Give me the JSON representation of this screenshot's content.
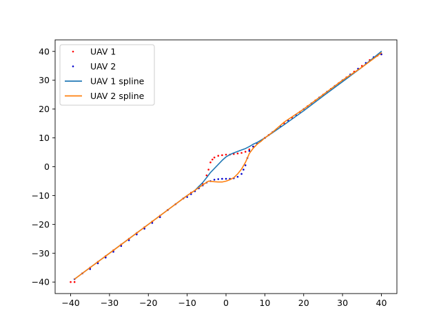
{
  "chart_data": {
    "type": "scatter",
    "title": "",
    "xlabel": "",
    "ylabel": "",
    "xlim": [
      -44.0,
      44.0
    ],
    "ylim": [
      -44.0,
      44.0
    ],
    "grid": false,
    "legend_placement": "upper-left",
    "xticks": [
      -40,
      -30,
      -20,
      -10,
      0,
      10,
      20,
      30,
      40
    ],
    "yticks": [
      -40,
      -30,
      -20,
      -10,
      0,
      10,
      20,
      30,
      40
    ],
    "xtick_labels": [
      "−40",
      "−30",
      "−20",
      "−10",
      "0",
      "10",
      "20",
      "30",
      "40"
    ],
    "ytick_labels": [
      "−40",
      "−30",
      "−20",
      "−10",
      "0",
      "10",
      "20",
      "30",
      "40"
    ],
    "series": [
      {
        "name": "UAV 1",
        "kind": "scatter",
        "color": "#ff0000",
        "points": [
          [
            -40,
            -40
          ],
          [
            -39,
            -40
          ],
          [
            -37,
            -37
          ],
          [
            -35,
            -35
          ],
          [
            -33,
            -33
          ],
          [
            -31,
            -31
          ],
          [
            -29,
            -29
          ],
          [
            -27,
            -27
          ],
          [
            -25,
            -25
          ],
          [
            -23,
            -23
          ],
          [
            -21,
            -21
          ],
          [
            -19,
            -19
          ],
          [
            -17,
            -17
          ],
          [
            -15,
            -15
          ],
          [
            -13,
            -13
          ],
          [
            -11,
            -11
          ],
          [
            -9,
            -9
          ],
          [
            -7,
            -7
          ],
          [
            -6,
            -6
          ],
          [
            -5,
            -3
          ],
          [
            -4.5,
            -1
          ],
          [
            -4,
            1.5
          ],
          [
            -3.5,
            2.5
          ],
          [
            -3,
            3.2
          ],
          [
            -2,
            3.8
          ],
          [
            -1,
            4
          ],
          [
            0,
            4.2
          ],
          [
            1,
            4.2
          ],
          [
            2,
            4.4
          ],
          [
            3,
            4.6
          ],
          [
            4,
            4.8
          ],
          [
            5,
            5.2
          ],
          [
            6,
            6
          ],
          [
            7,
            7
          ],
          [
            8,
            8
          ],
          [
            9,
            9
          ],
          [
            10,
            10
          ],
          [
            11,
            11
          ],
          [
            12,
            12
          ],
          [
            13,
            13
          ],
          [
            15,
            15
          ],
          [
            17,
            17
          ],
          [
            19,
            19
          ],
          [
            21,
            21
          ],
          [
            23,
            23
          ],
          [
            25,
            25
          ],
          [
            27,
            27
          ],
          [
            29,
            29
          ],
          [
            31,
            31
          ],
          [
            33,
            33
          ],
          [
            35,
            35
          ],
          [
            37,
            37
          ],
          [
            39,
            38.5
          ],
          [
            40,
            39
          ]
        ]
      },
      {
        "name": "UAV 2",
        "kind": "scatter",
        "color": "#0000cc",
        "points": [
          [
            -39,
            -39
          ],
          [
            -37,
            -37
          ],
          [
            -35,
            -35.5
          ],
          [
            -33,
            -33.5
          ],
          [
            -31,
            -31.5
          ],
          [
            -29,
            -29.5
          ],
          [
            -27,
            -27.5
          ],
          [
            -25,
            -25.5
          ],
          [
            -23,
            -23.5
          ],
          [
            -21,
            -21.5
          ],
          [
            -19,
            -19.5
          ],
          [
            -17,
            -17.5
          ],
          [
            -15,
            -15
          ],
          [
            -13,
            -13
          ],
          [
            -11,
            -11
          ],
          [
            -10,
            -10.5
          ],
          [
            -9,
            -9.5
          ],
          [
            -8,
            -8.5
          ],
          [
            -7,
            -7.5
          ],
          [
            -6,
            -6.5
          ],
          [
            -5,
            -5.5
          ],
          [
            -4,
            -5
          ],
          [
            -3,
            -4.5
          ],
          [
            -2,
            -4.3
          ],
          [
            -1,
            -4.2
          ],
          [
            0,
            -4.2
          ],
          [
            1,
            -4.2
          ],
          [
            2,
            -4
          ],
          [
            3,
            -3.5
          ],
          [
            4,
            -2.5
          ],
          [
            4.5,
            -1
          ],
          [
            5,
            0.5
          ],
          [
            5.5,
            3
          ],
          [
            6,
            5.5
          ],
          [
            7,
            7
          ],
          [
            8,
            8
          ],
          [
            9,
            9
          ],
          [
            10,
            10
          ],
          [
            11,
            11
          ],
          [
            12,
            12
          ],
          [
            14,
            14
          ],
          [
            16,
            16
          ],
          [
            18,
            18
          ],
          [
            20,
            20
          ],
          [
            22,
            22
          ],
          [
            24,
            24
          ],
          [
            26,
            26
          ],
          [
            28,
            28
          ],
          [
            30,
            30
          ],
          [
            32,
            32
          ],
          [
            34,
            34
          ],
          [
            36,
            36
          ],
          [
            38,
            38
          ],
          [
            40,
            39
          ]
        ]
      },
      {
        "name": "UAV 1 spline",
        "kind": "line",
        "color": "#1f77b4",
        "points": [
          [
            -39,
            -39
          ],
          [
            -30,
            -30
          ],
          [
            -20,
            -20
          ],
          [
            -15,
            -15
          ],
          [
            -10,
            -10
          ],
          [
            -8,
            -8.2
          ],
          [
            -6,
            -5.5
          ],
          [
            -5,
            -3.8
          ],
          [
            -4,
            -2
          ],
          [
            -3,
            -0.6
          ],
          [
            -2,
            0.8
          ],
          [
            -1,
            2.2
          ],
          [
            0,
            3.4
          ],
          [
            1,
            4.2
          ],
          [
            2,
            4.8
          ],
          [
            3,
            5.3
          ],
          [
            4,
            5.8
          ],
          [
            5,
            6.3
          ],
          [
            6,
            7
          ],
          [
            7,
            7.8
          ],
          [
            8,
            8.4
          ],
          [
            10,
            10
          ],
          [
            12,
            11.8
          ],
          [
            15,
            14.6
          ],
          [
            20,
            19.4
          ],
          [
            25,
            24.5
          ],
          [
            30,
            29.5
          ],
          [
            35,
            34.5
          ],
          [
            40,
            40
          ]
        ]
      },
      {
        "name": "UAV 2 spline",
        "kind": "line",
        "color": "#ff7f0e",
        "points": [
          [
            -39,
            -39
          ],
          [
            -30,
            -30
          ],
          [
            -20,
            -20
          ],
          [
            -10,
            -10
          ],
          [
            -8,
            -8.2
          ],
          [
            -6,
            -6.3
          ],
          [
            -4.5,
            -5
          ],
          [
            -3,
            -5.2
          ],
          [
            -2,
            -5.3
          ],
          [
            -1,
            -5.3
          ],
          [
            0,
            -5
          ],
          [
            1,
            -4.5
          ],
          [
            2,
            -3.8
          ],
          [
            3,
            -2.5
          ],
          [
            4,
            -0.8
          ],
          [
            5,
            1.5
          ],
          [
            5.5,
            3
          ],
          [
            6,
            4.6
          ],
          [
            7,
            6.4
          ],
          [
            8,
            7.8
          ],
          [
            9,
            8.8
          ],
          [
            10,
            10
          ],
          [
            12,
            12
          ],
          [
            15,
            15.5
          ],
          [
            20,
            20
          ],
          [
            25,
            25
          ],
          [
            30,
            30
          ],
          [
            35,
            34.5
          ],
          [
            40,
            39.5
          ]
        ]
      }
    ]
  }
}
